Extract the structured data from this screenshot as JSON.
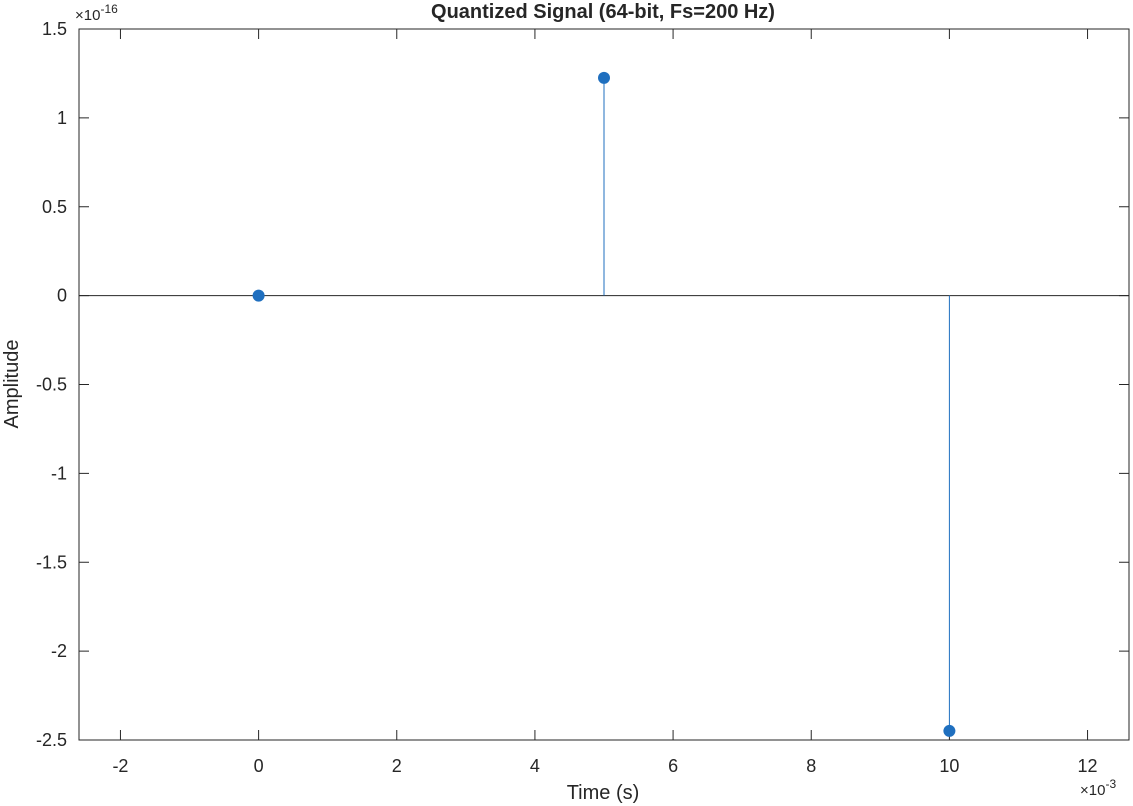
{
  "chart_data": {
    "type": "stem",
    "title": "Quantized Signal (64-bit, Fs=200 Hz)",
    "xlabel": "Time (s)",
    "ylabel": "Amplitude",
    "x_multiplier_base": "×10",
    "x_multiplier_exp": "-3",
    "y_multiplier_base": "×10",
    "y_multiplier_exp": "-16",
    "xlim": [
      -2.6,
      12.6
    ],
    "ylim": [
      -2.5,
      1.5
    ],
    "xticks": [
      -2,
      0,
      2,
      4,
      6,
      8,
      10,
      12
    ],
    "yticks": [
      1.5,
      1,
      0.5,
      0,
      -0.5,
      -1,
      -1.5,
      -2,
      -2.5
    ],
    "x_values": [
      0,
      5,
      10
    ],
    "y_values": [
      0,
      1.225,
      -2.449
    ],
    "color": "#1f6fbf",
    "grid": false,
    "baseline": 0
  }
}
